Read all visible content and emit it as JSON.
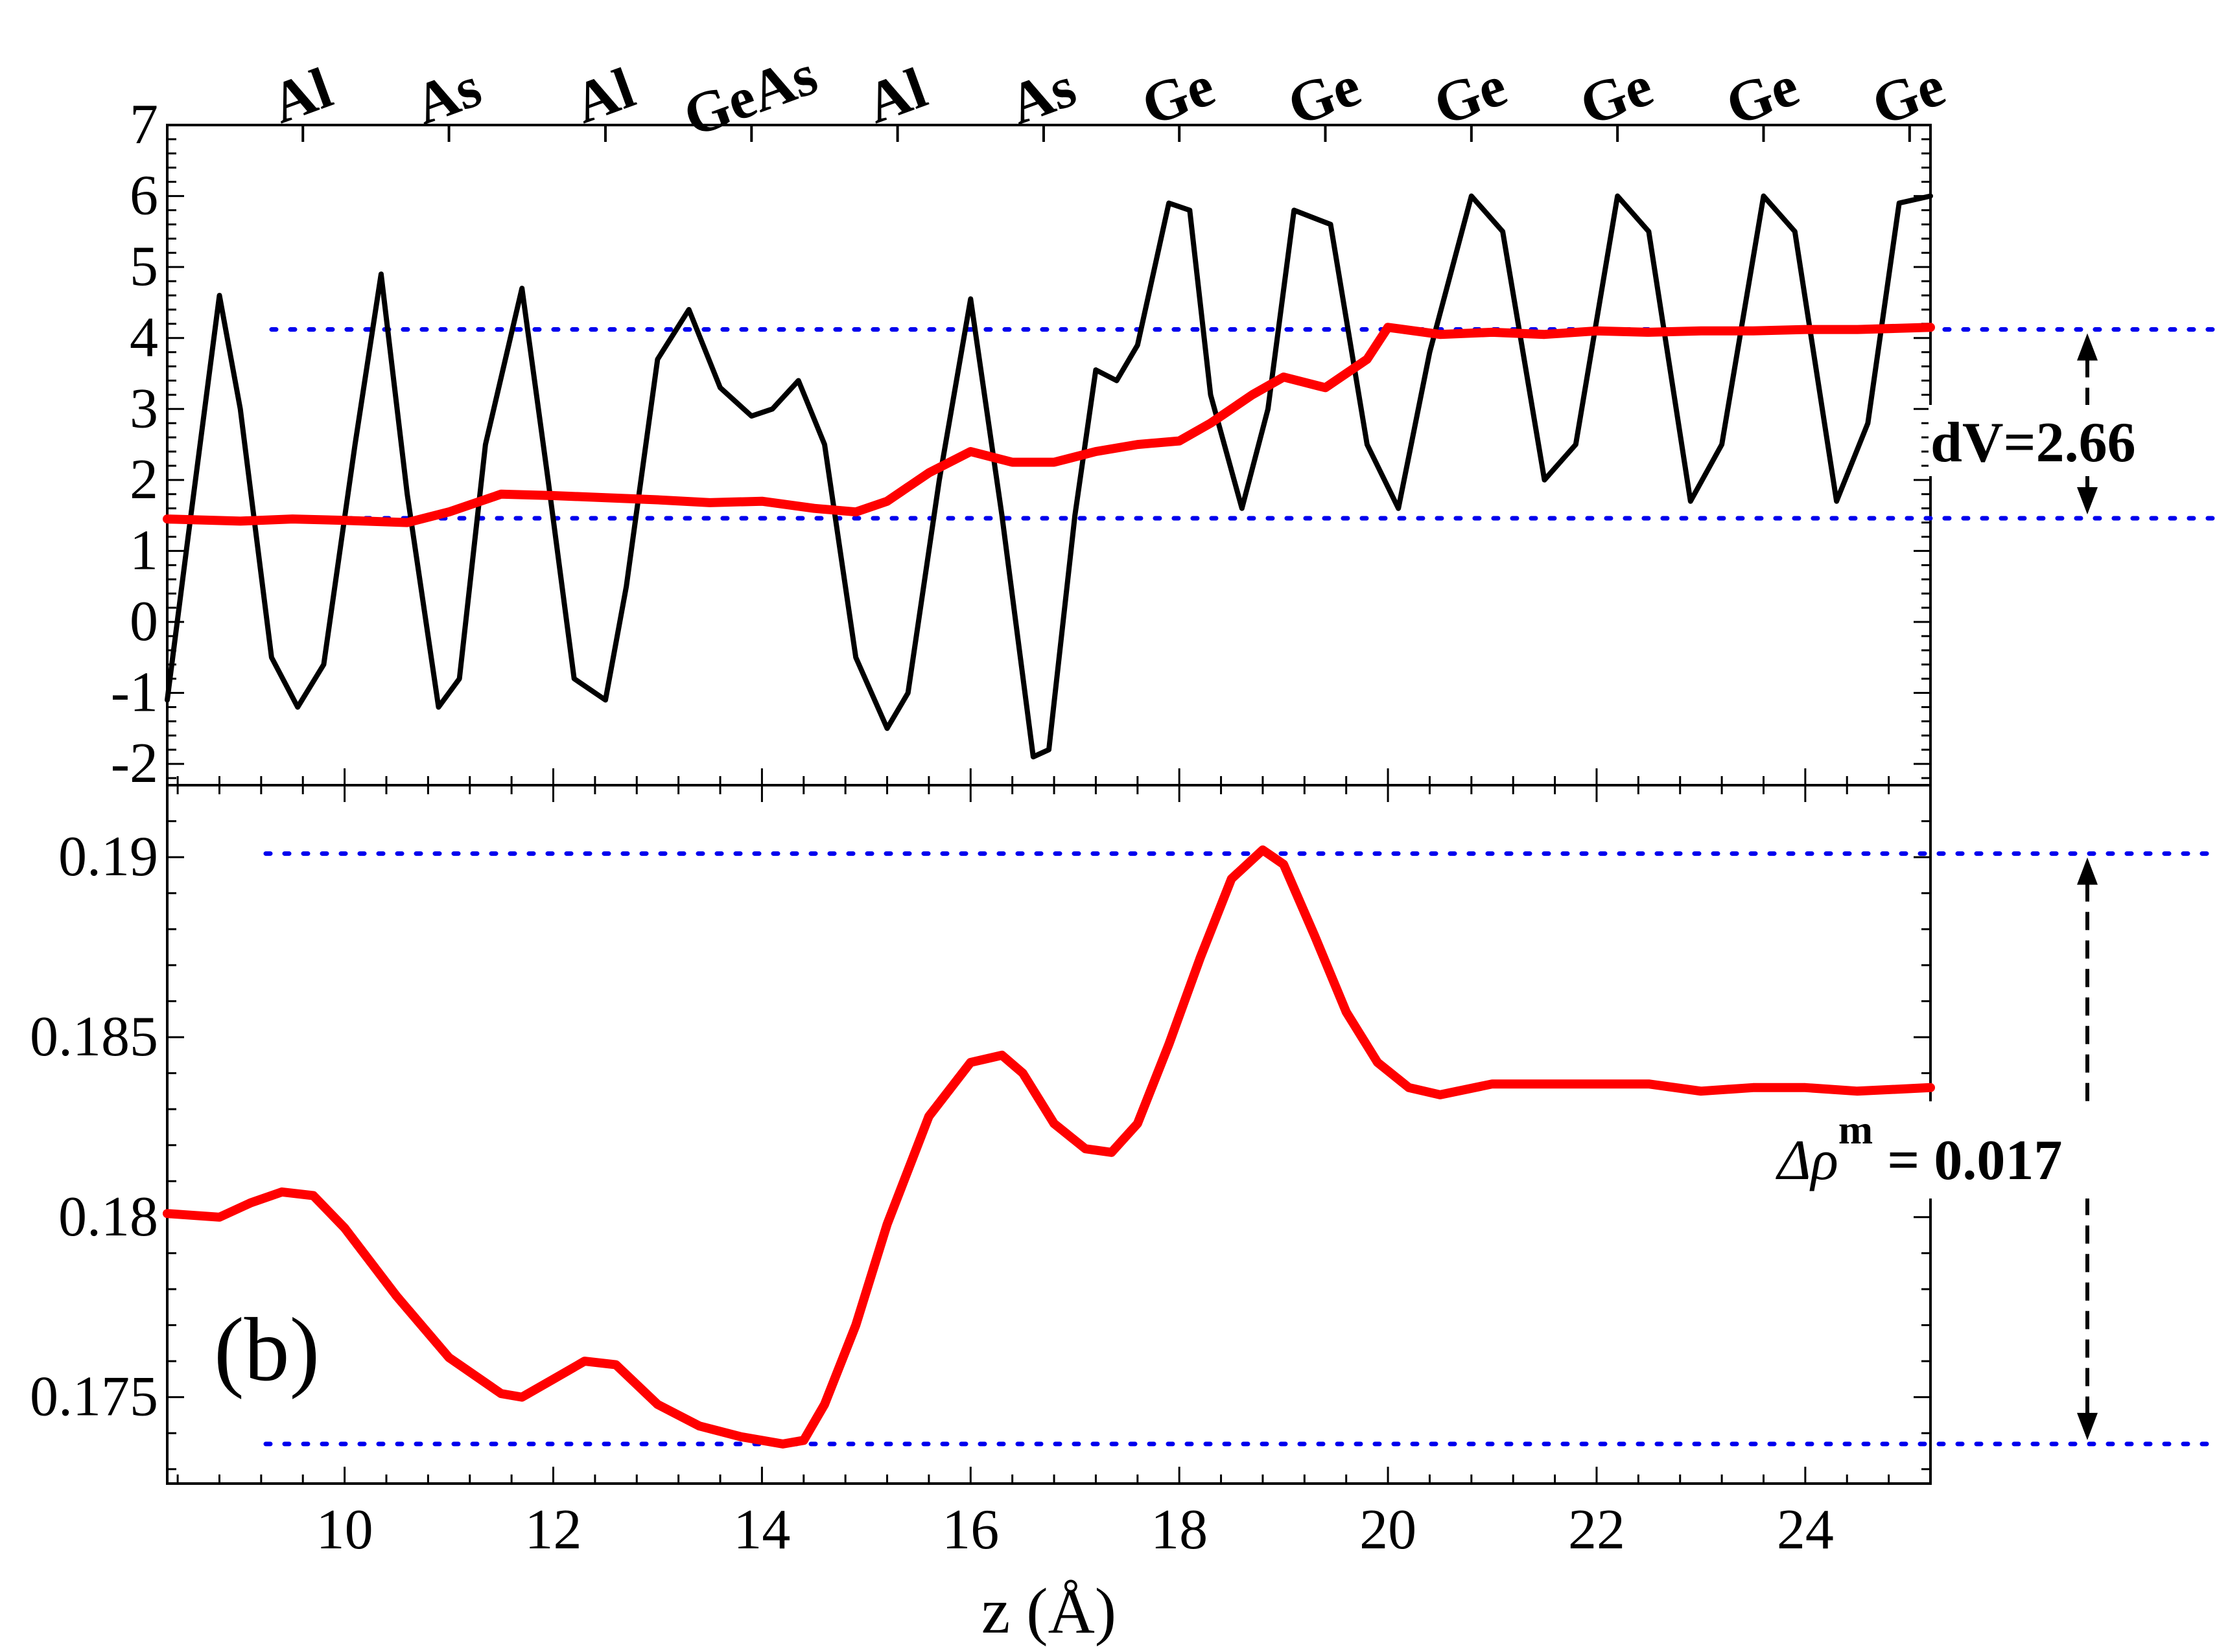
{
  "chart_data": [
    {
      "type": "line",
      "panel": "top",
      "xlim": [
        8.3,
        25.2
      ],
      "ylim": [
        -2.3,
        7
      ],
      "yticks": [
        "7",
        "6",
        "5",
        "4",
        "3",
        "2",
        "1",
        "0",
        "-1",
        "-2"
      ],
      "atom_labels": [
        {
          "text": "Al",
          "x": 9.6
        },
        {
          "text": "As",
          "x": 11.0
        },
        {
          "text": "Al",
          "x": 12.5
        },
        {
          "text": "GeAs",
          "x": 13.9
        },
        {
          "text": "Al",
          "x": 15.3
        },
        {
          "text": "As",
          "x": 16.7
        },
        {
          "text": "Ge",
          "x": 18.0
        },
        {
          "text": "Ge",
          "x": 19.4
        },
        {
          "text": "Ge",
          "x": 20.8
        },
        {
          "text": "Ge",
          "x": 22.2
        },
        {
          "text": "Ge",
          "x": 23.6
        },
        {
          "text": "Ge",
          "x": 25.0
        }
      ],
      "series": [
        {
          "color": "#000000",
          "x": [
            8.3,
            8.5,
            8.8,
            9.0,
            9.3,
            9.55,
            9.8,
            10.1,
            10.35,
            10.6,
            10.9,
            11.1,
            11.35,
            11.7,
            11.95,
            12.2,
            12.5,
            12.7,
            13.0,
            13.3,
            13.6,
            13.9,
            14.1,
            14.35,
            14.6,
            14.9,
            15.2,
            15.4,
            15.7,
            16.0,
            16.3,
            16.6,
            16.75,
            17.0,
            17.2,
            17.4,
            17.6,
            17.9,
            18.1,
            18.3,
            18.6,
            18.85,
            19.1,
            19.45,
            19.8,
            20.1,
            20.4,
            20.8,
            21.1,
            21.5,
            21.8,
            22.2,
            22.5,
            22.9,
            23.2,
            23.6,
            23.9,
            24.3,
            24.6,
            24.9,
            25.2
          ],
          "values": [
            -1.1,
            1.2,
            4.6,
            3.0,
            -0.5,
            -1.2,
            -0.6,
            2.5,
            4.9,
            1.8,
            -1.2,
            -0.8,
            2.5,
            4.7,
            2.0,
            -0.8,
            -1.1,
            0.5,
            3.7,
            4.4,
            3.3,
            2.9,
            3.0,
            3.4,
            2.5,
            -0.5,
            -1.5,
            -1.0,
            2.0,
            4.55,
            1.5,
            -1.9,
            -1.8,
            1.5,
            3.55,
            3.4,
            3.9,
            5.9,
            5.8,
            3.2,
            1.6,
            3.0,
            5.8,
            5.6,
            2.5,
            1.6,
            3.8,
            6.0,
            5.5,
            2.0,
            2.5,
            6.0,
            5.5,
            1.7,
            2.5,
            6.0,
            5.5,
            1.7,
            2.8,
            5.9,
            6.0
          ]
        },
        {
          "color": "#ff0000",
          "x": [
            8.3,
            9.0,
            9.5,
            10.0,
            10.6,
            11.0,
            11.5,
            12.0,
            12.5,
            13.0,
            13.5,
            14.0,
            14.5,
            14.9,
            15.2,
            15.6,
            16.0,
            16.4,
            16.8,
            17.2,
            17.6,
            18.0,
            18.3,
            18.7,
            19.0,
            19.4,
            19.8,
            20.0,
            20.5,
            21.0,
            21.5,
            22.0,
            22.5,
            23.0,
            23.5,
            24.0,
            24.5,
            25.2
          ],
          "values": [
            1.45,
            1.42,
            1.45,
            1.43,
            1.4,
            1.55,
            1.8,
            1.78,
            1.75,
            1.72,
            1.68,
            1.7,
            1.6,
            1.55,
            1.7,
            2.1,
            2.4,
            2.25,
            2.25,
            2.4,
            2.5,
            2.55,
            2.8,
            3.2,
            3.45,
            3.3,
            3.7,
            4.15,
            4.05,
            4.08,
            4.05,
            4.1,
            4.08,
            4.1,
            4.1,
            4.12,
            4.12,
            4.15
          ]
        }
      ],
      "reference_levels": [
        4.12,
        1.46
      ],
      "annotation": "dV=2.66"
    },
    {
      "type": "line",
      "panel": "bottom",
      "xlim": [
        8.3,
        25.2
      ],
      "ylim": [
        0.1726,
        0.192
      ],
      "yticks": [
        "0.19",
        "0.185",
        "0.18",
        "0.175"
      ],
      "xticks": [
        "10",
        "12",
        "14",
        "16",
        "18",
        "20",
        "22",
        "24"
      ],
      "xlabel": "z (Å)",
      "panel_label": "(b)",
      "series": [
        {
          "color": "#ff0000",
          "x": [
            8.3,
            8.8,
            9.1,
            9.4,
            9.7,
            10.0,
            10.5,
            11.0,
            11.5,
            11.7,
            12.0,
            12.3,
            12.6,
            13.0,
            13.4,
            13.8,
            14.2,
            14.4,
            14.6,
            14.9,
            15.2,
            15.6,
            16.0,
            16.3,
            16.5,
            16.8,
            17.1,
            17.35,
            17.6,
            17.9,
            18.2,
            18.5,
            18.8,
            19.0,
            19.3,
            19.6,
            19.9,
            20.2,
            20.5,
            21.0,
            21.5,
            22.0,
            22.5,
            23.0,
            23.5,
            24.0,
            24.5,
            25.2
          ],
          "values": [
            0.1801,
            0.18,
            0.1804,
            0.1807,
            0.1806,
            0.1797,
            0.1778,
            0.1761,
            0.1751,
            0.175,
            0.1755,
            0.176,
            0.1759,
            0.1748,
            0.1742,
            0.1739,
            0.1737,
            0.1738,
            0.1748,
            0.177,
            0.1798,
            0.1828,
            0.1843,
            0.1845,
            0.184,
            0.1826,
            0.1819,
            0.1818,
            0.1826,
            0.1848,
            0.1872,
            0.1894,
            0.1902,
            0.1898,
            0.1878,
            0.1857,
            0.1843,
            0.1836,
            0.1834,
            0.1837,
            0.1837,
            0.1837,
            0.1837,
            0.1835,
            0.1836,
            0.1836,
            0.1835,
            0.1836
          ]
        }
      ],
      "reference_levels": [
        0.1901,
        0.1737
      ],
      "annotation": {
        "symbol": "Δρ",
        "superscript": "m",
        "value": " = 0.017"
      }
    }
  ],
  "colors": {
    "reference_line": "#0000ee",
    "axis": "#000000"
  }
}
